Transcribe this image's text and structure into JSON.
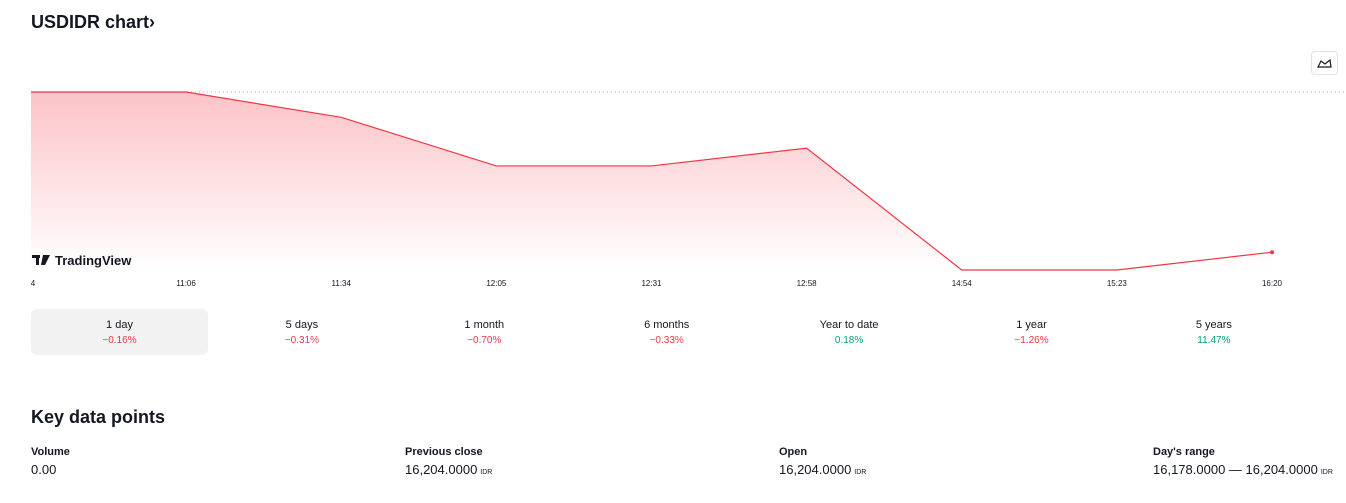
{
  "header": {
    "title": "USDIDR chart›"
  },
  "chart_data": {
    "type": "area",
    "categories": [
      "4",
      "11:06",
      "11:34",
      "12:05",
      "12:31",
      "12:58",
      "14:54",
      "15:23",
      "16:20"
    ],
    "values": [
      16204,
      16204,
      16200.3,
      16193.2,
      16193.2,
      16195.8,
      16178,
      16178,
      16180.6
    ],
    "color": "#f23645",
    "ylim": [
      16178,
      16204
    ],
    "watermark": "TradingView"
  },
  "ranges": [
    {
      "label": "1 day",
      "change": "−0.16%",
      "color": "#f23645",
      "selected": true
    },
    {
      "label": "5 days",
      "change": "−0.31%",
      "color": "#f23645"
    },
    {
      "label": "1 month",
      "change": "−0.70%",
      "color": "#f23645"
    },
    {
      "label": "6 months",
      "change": "−0.33%",
      "color": "#f23645"
    },
    {
      "label": "Year to date",
      "change": "0.18%",
      "color": "#089981"
    },
    {
      "label": "1 year",
      "change": "−1.26%",
      "color": "#f23645"
    },
    {
      "label": "5 years",
      "change": "11.47%",
      "color": "#089981"
    }
  ],
  "key_data": {
    "title": "Key data points",
    "items": [
      {
        "label": "Volume",
        "value": "0.00"
      },
      {
        "label": "Previous close",
        "value": "16,204.0000",
        "unit": "IDR"
      },
      {
        "label": "Open",
        "value": "16,204.0000",
        "unit": "IDR"
      },
      {
        "label": "Day's range",
        "value": "16,178.0000 — 16,204.0000",
        "unit": "IDR"
      }
    ]
  }
}
